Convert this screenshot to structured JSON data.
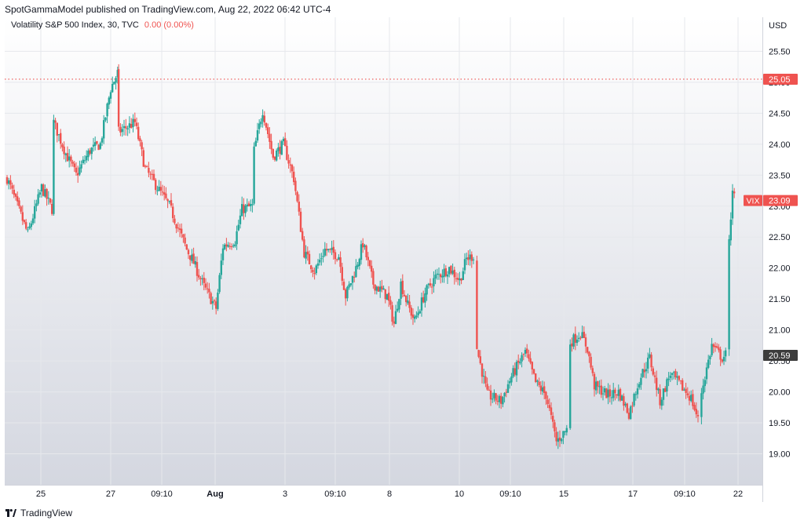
{
  "header": {
    "publisher_line": "SpotGammaModel published on TradingView.com, Aug 22, 2022 06:42 UTC-4"
  },
  "legend": {
    "symbol": "Volatility S&P 500 Index, 30, TVC",
    "change": "0.00 (0.00%)"
  },
  "footer": {
    "brand": "TradingView"
  },
  "colors": {
    "up": "#26a69a",
    "down": "#ef5350",
    "grid": "#e6e8ec",
    "axis_text": "#131722",
    "bg_top": "#ffffff",
    "bg_bottom": "#d4d7e0",
    "reference_line": "#ef5350",
    "last_price_badge": "#3c3c3c"
  },
  "chart_data": {
    "type": "candlestick",
    "title": "Volatility S&P 500 Index, 30, TVC",
    "currency": "USD",
    "ylim": [
      18.5,
      26.05
    ],
    "y_ticks": [
      "19.00",
      "19.50",
      "20.00",
      "20.50",
      "21.00",
      "21.50",
      "22.00",
      "22.50",
      "23.00",
      "23.50",
      "24.00",
      "24.50",
      "25.00",
      "25.50"
    ],
    "x_ticks": [
      "25",
      "27",
      "09:10",
      "Aug",
      "3",
      "09:10",
      "8",
      "10",
      "09:10",
      "15",
      "17",
      "09:10",
      "22"
    ],
    "bold_ticks": [
      "Aug"
    ],
    "reference_line": {
      "value": 25.05,
      "label": "25.05",
      "style": "dotted"
    },
    "markers": [
      {
        "label": "VIX",
        "value": "23.09",
        "price": 23.09
      },
      {
        "label": "",
        "value": "20.59",
        "price": 20.59
      }
    ],
    "grid": true,
    "price_path": [
      [
        0,
        23.45
      ],
      [
        6,
        22.55
      ],
      [
        10,
        23.3
      ],
      [
        13,
        22.95
      ],
      [
        13.5,
        24.35
      ],
      [
        17,
        23.85
      ],
      [
        20,
        23.5
      ],
      [
        24,
        23.9
      ],
      [
        27,
        24.0
      ],
      [
        30,
        24.9
      ],
      [
        32,
        25.15
      ],
      [
        32.3,
        24.2
      ],
      [
        37,
        24.35
      ],
      [
        40,
        23.6
      ],
      [
        47,
        23.0
      ],
      [
        52,
        22.3
      ],
      [
        53.5,
        22.15
      ],
      [
        57,
        21.7
      ],
      [
        60.5,
        21.35
      ],
      [
        62.5,
        22.35
      ],
      [
        66,
        22.45
      ],
      [
        68,
        22.95
      ],
      [
        71,
        23.0
      ],
      [
        71.5,
        23.9
      ],
      [
        74,
        24.55
      ],
      [
        77,
        23.8
      ],
      [
        80,
        24.0
      ],
      [
        83,
        23.45
      ],
      [
        86,
        22.25
      ],
      [
        89,
        21.95
      ],
      [
        92,
        22.3
      ],
      [
        96,
        22.2
      ],
      [
        98,
        21.55
      ],
      [
        101,
        22.0
      ],
      [
        103,
        22.4
      ],
      [
        106,
        21.75
      ],
      [
        110,
        21.55
      ],
      [
        112,
        21.1
      ],
      [
        114,
        21.75
      ],
      [
        116,
        21.4
      ],
      [
        118,
        21.15
      ],
      [
        121,
        21.6
      ],
      [
        124,
        21.85
      ],
      [
        128,
        22.0
      ],
      [
        131,
        21.8
      ],
      [
        133,
        22.15
      ],
      [
        135,
        22.2
      ],
      [
        136,
        20.7
      ],
      [
        139,
        19.95
      ],
      [
        143,
        19.85
      ],
      [
        146,
        20.25
      ],
      [
        150,
        20.65
      ],
      [
        153,
        20.15
      ],
      [
        156,
        19.95
      ],
      [
        159,
        19.2
      ],
      [
        162,
        19.4
      ],
      [
        163,
        20.8
      ],
      [
        166,
        20.95
      ],
      [
        168,
        20.7
      ],
      [
        170,
        20.1
      ],
      [
        174,
        19.95
      ],
      [
        177,
        20.0
      ],
      [
        180,
        19.65
      ],
      [
        183,
        20.2
      ],
      [
        186,
        20.55
      ],
      [
        189,
        19.85
      ],
      [
        192,
        20.3
      ],
      [
        195,
        20.1
      ],
      [
        198,
        19.9
      ],
      [
        200,
        19.55
      ],
      [
        201,
        20.0
      ],
      [
        204,
        20.75
      ],
      [
        207,
        20.55
      ],
      [
        208,
        20.6
      ],
      [
        209,
        22.4
      ],
      [
        210,
        23.3
      ],
      [
        211,
        23.0
      ]
    ],
    "gaps_after_bar": [
      13,
      32,
      60,
      135,
      162,
      200,
      208
    ]
  }
}
